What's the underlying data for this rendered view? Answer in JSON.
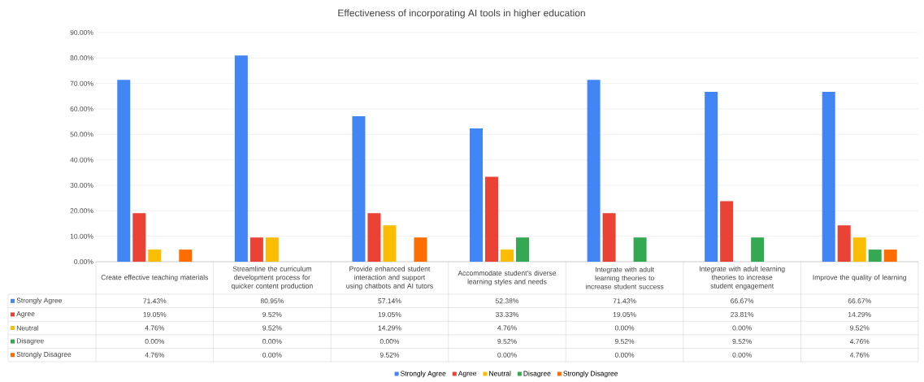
{
  "chart_data": {
    "type": "bar",
    "title": "Effectiveness of incorporating AI tools in higher education",
    "categories": [
      "Create effective teaching materials",
      "Streamline the curriculum development process for quicker content production",
      "Provide enhanced student interaction and support using chatbots and AI tutors",
      "Accommodate student's diverse learning styles and needs",
      "Integrate with adult learning theories to increase student success",
      "Integrate with adult learning theories to increase student engagement",
      "Improve the quality of learning"
    ],
    "series": [
      {
        "name": "Strongly Agree",
        "color": "#4285f4",
        "values": [
          71.43,
          80.95,
          57.14,
          52.38,
          71.43,
          66.67,
          66.67
        ],
        "value_labels": [
          "71.43%",
          "80.95%",
          "57.14%",
          "52.38%",
          "71.43%",
          "66.67%",
          "66.67%"
        ]
      },
      {
        "name": "Agree",
        "color": "#ea4335",
        "values": [
          19.05,
          9.52,
          19.05,
          33.33,
          19.05,
          23.81,
          14.29
        ],
        "value_labels": [
          "19.05%",
          "9.52%",
          "19.05%",
          "33.33%",
          "19.05%",
          "23.81%",
          "14.29%"
        ]
      },
      {
        "name": "Neutral",
        "color": "#fbbc04",
        "values": [
          4.76,
          9.52,
          14.29,
          4.76,
          0.0,
          0.0,
          9.52
        ],
        "value_labels": [
          "4.76%",
          "9.52%",
          "14.29%",
          "4.76%",
          "0.00%",
          "0.00%",
          "9.52%"
        ]
      },
      {
        "name": "Disagree",
        "color": "#34a853",
        "values": [
          0.0,
          0.0,
          0.0,
          9.52,
          9.52,
          9.52,
          4.76
        ],
        "value_labels": [
          "0.00%",
          "0.00%",
          "0.00%",
          "9.52%",
          "9.52%",
          "9.52%",
          "4.76%"
        ]
      },
      {
        "name": "Strongly Disagree",
        "color": "#ff6d01",
        "values": [
          4.76,
          0.0,
          9.52,
          0.0,
          0.0,
          0.0,
          4.76
        ],
        "value_labels": [
          "4.76%",
          "0.00%",
          "9.52%",
          "0.00%",
          "0.00%",
          "0.00%",
          "4.76%"
        ]
      }
    ],
    "ylim": [
      0,
      90
    ],
    "yticks": [
      {
        "value": 0,
        "label": "0.00%"
      },
      {
        "value": 10,
        "label": "10.00%"
      },
      {
        "value": 20,
        "label": "20.00%"
      },
      {
        "value": 30,
        "label": "30.00%"
      },
      {
        "value": 40,
        "label": "40.00%"
      },
      {
        "value": 50,
        "label": "50.00%"
      },
      {
        "value": 60,
        "label": "60.00%"
      },
      {
        "value": 70,
        "label": "70.00%"
      },
      {
        "value": 80,
        "label": "80.00%"
      },
      {
        "value": 90,
        "label": "90.00%"
      }
    ],
    "grid": "y",
    "legend": "bottom"
  }
}
